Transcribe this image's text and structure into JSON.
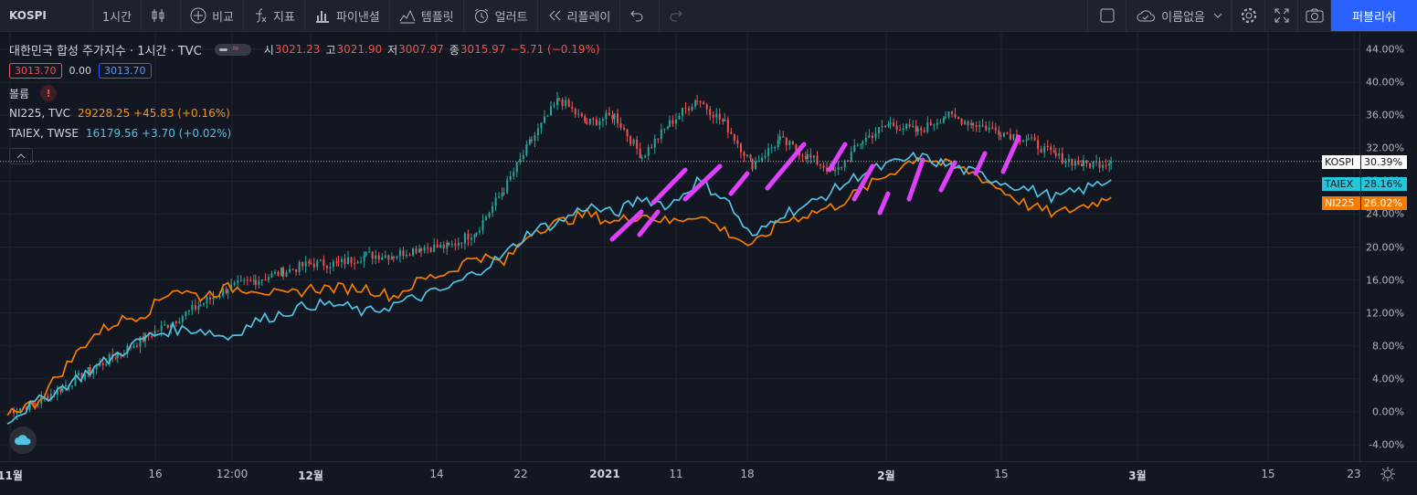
{
  "toolbar": {
    "symbol": "KOSPI",
    "interval": "1시간",
    "compare_label": "비교",
    "indicators_label": "지표",
    "financials_label": "파이낸셜",
    "templates_label": "템플릿",
    "alert_label": "얼러트",
    "replay_label": "리플레이",
    "layout_name": "이름없음",
    "publish_label": "퍼블리쉬"
  },
  "legend": {
    "title": "대한민국 합성 주가지수 · 1시간 · TVC",
    "open_label": "시",
    "open": "3021.23",
    "high_label": "고",
    "high": "3021.90",
    "low_label": "저",
    "low": "3007.97",
    "close_label": "종",
    "close": "3015.97",
    "change": "−5.71 (−0.19%)",
    "bid": "3013.70",
    "spread": "0.00",
    "ask": "3013.70",
    "volume_label": "볼륨",
    "warning": "!",
    "compare": [
      {
        "name": "NI225, TVC",
        "value": "29228.25 +45.83 (+0.16%)"
      },
      {
        "name": "TAIEX, TWSE",
        "value": "16179.56 +3.70 (+0.02%)"
      }
    ]
  },
  "axis_tags": {
    "kospi": {
      "label": "KOSPI",
      "value": "30.39%",
      "bg": "#ffffff",
      "fg": "#131722"
    },
    "taiex": {
      "label": "TAIEX",
      "value": "28.16%",
      "bg": "#26c6da",
      "fg": "#131722"
    },
    "ni225": {
      "label": "NI225",
      "value": "26.02%",
      "bg": "#f57c00",
      "fg": "#ffffff"
    }
  },
  "colors": {
    "up": "#26a69a",
    "down": "#ef5350",
    "ni225": "#f57c00",
    "taiex": "#4fc3e0",
    "annotation": "#e040fb"
  },
  "chart_data": {
    "type": "line",
    "ylabel": "",
    "xlabel": "",
    "ylim": [
      -6,
      46
    ],
    "y_ticks": [
      "44.00%",
      "40.00%",
      "36.00%",
      "32.00%",
      "28.00%",
      "24.00%",
      "20.00%",
      "16.00%",
      "12.00%",
      "8.00%",
      "4.00%",
      "0.00%",
      "-4.00%"
    ],
    "x_ticks": [
      {
        "label": "11월",
        "bold": true
      },
      {
        "label": "16",
        "bold": false
      },
      {
        "label": "12:00",
        "bold": false
      },
      {
        "label": "12월",
        "bold": true
      },
      {
        "label": "14",
        "bold": false
      },
      {
        "label": "22",
        "bold": false
      },
      {
        "label": "2021",
        "bold": true
      },
      {
        "label": "11",
        "bold": false
      },
      {
        "label": "18",
        "bold": false
      },
      {
        "label": "2월",
        "bold": true
      },
      {
        "label": "15",
        "bold": false
      },
      {
        "label": "3월",
        "bold": true
      },
      {
        "label": "15",
        "bold": false
      },
      {
        "label": "23",
        "bold": false
      }
    ],
    "series": [
      {
        "name": "KOSPI",
        "style": "candles",
        "x": [
          0,
          3,
          6,
          9,
          12,
          15,
          18,
          21,
          24,
          27,
          30,
          33,
          36,
          39,
          42,
          45,
          48,
          51,
          54,
          57,
          60,
          63,
          66,
          69,
          72,
          75,
          78,
          81,
          84,
          87,
          90,
          93,
          96,
          99,
          102,
          105,
          108,
          111,
          114,
          117,
          120
        ],
        "values": [
          0,
          1,
          3,
          5,
          7,
          9,
          11,
          13,
          15,
          16,
          17,
          18,
          18,
          19,
          19,
          20,
          20,
          22,
          27,
          33,
          38,
          35,
          36,
          31,
          35,
          38,
          35,
          30,
          33,
          31,
          29,
          33,
          35,
          34,
          36,
          35,
          34,
          33,
          31,
          30,
          30.39
        ]
      },
      {
        "name": "NI225",
        "style": "line",
        "x": [
          0,
          3,
          6,
          9,
          12,
          15,
          18,
          21,
          24,
          27,
          30,
          33,
          36,
          39,
          42,
          45,
          48,
          51,
          54,
          57,
          60,
          63,
          66,
          69,
          72,
          75,
          78,
          81,
          84,
          87,
          90,
          93,
          96,
          99,
          102,
          105,
          108,
          111,
          114,
          117,
          120
        ],
        "values": [
          0,
          1,
          5,
          9,
          11,
          12,
          15,
          14,
          15,
          15,
          14,
          15,
          15,
          15,
          14,
          16,
          17,
          19,
          18,
          22,
          23,
          24,
          23,
          24,
          23,
          24,
          22,
          20,
          23,
          24,
          25,
          27,
          29,
          31,
          30,
          29,
          27,
          25,
          24,
          25,
          26.02
        ]
      },
      {
        "name": "TAIEX",
        "style": "line",
        "x": [
          0,
          3,
          6,
          9,
          12,
          15,
          18,
          21,
          24,
          27,
          30,
          33,
          36,
          39,
          42,
          45,
          48,
          51,
          54,
          57,
          60,
          63,
          66,
          69,
          72,
          75,
          78,
          81,
          84,
          87,
          90,
          93,
          96,
          99,
          102,
          105,
          108,
          111,
          114,
          117,
          120
        ],
        "values": [
          -1,
          1,
          3,
          5,
          7,
          9,
          10,
          10,
          9,
          11,
          12,
          13,
          13,
          12,
          13,
          14,
          15,
          17,
          19,
          22,
          23,
          25,
          24,
          26,
          25,
          28,
          26,
          21,
          24,
          25,
          27,
          29,
          30,
          31,
          30,
          29,
          28,
          27,
          26,
          27,
          28.16
        ]
      }
    ]
  }
}
